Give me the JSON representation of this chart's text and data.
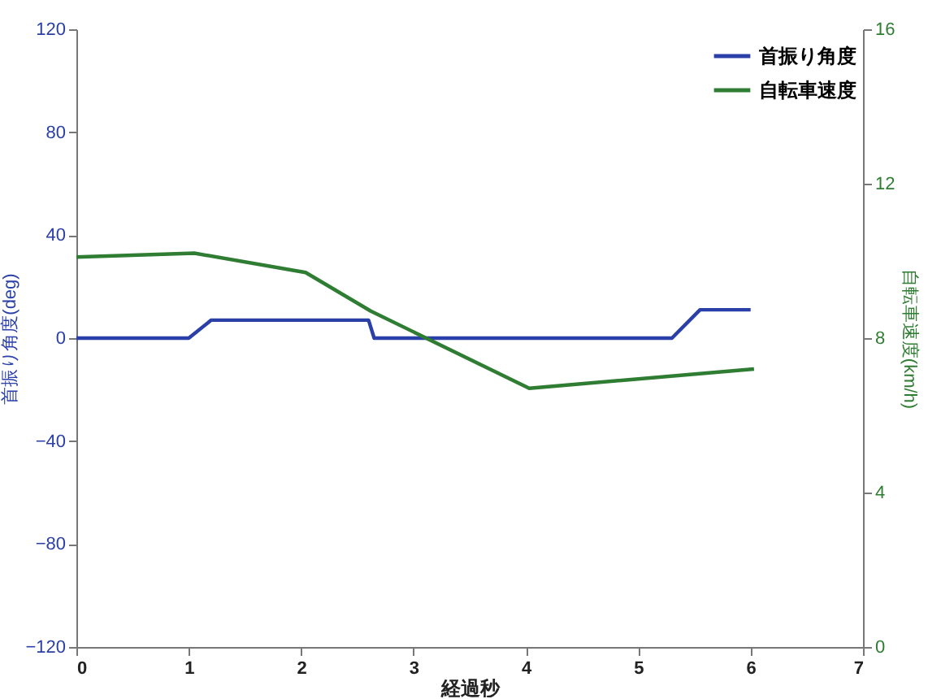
{
  "chart_data": {
    "type": "line",
    "xlabel": "経過秒",
    "ylabel": "首振り角度(deg)",
    "y2label": "自転車速度(km/h)",
    "xlim": [
      0,
      7
    ],
    "xticks": [
      0,
      1,
      2,
      3,
      4,
      5,
      6,
      7
    ],
    "ylim": [
      -120,
      120
    ],
    "yticks": [
      -120,
      -80,
      -40,
      0,
      40,
      80,
      120
    ],
    "y2lim": [
      0,
      16
    ],
    "y2ticks": [
      0,
      4,
      8,
      12,
      16
    ],
    "grid": false,
    "legend": "top right",
    "marker": "none",
    "line_style": "solid",
    "series": [
      {
        "name": "首振り角度",
        "color": "#2a3fa8",
        "x": [
          0,
          1.0,
          1.2,
          2.6,
          2.65,
          5.3,
          5.55,
          6.0
        ],
        "values": [
          0,
          0,
          7,
          7,
          0,
          0,
          11,
          11
        ]
      },
      {
        "name": "自転車速度",
        "color": "#2e7d32",
        "axis": "y2",
        "x": [
          0,
          1.05,
          2.04,
          2.62,
          4.03,
          6.03
        ],
        "values": [
          10.1,
          10.2,
          9.7,
          8.7,
          6.7,
          7.2
        ]
      }
    ]
  }
}
